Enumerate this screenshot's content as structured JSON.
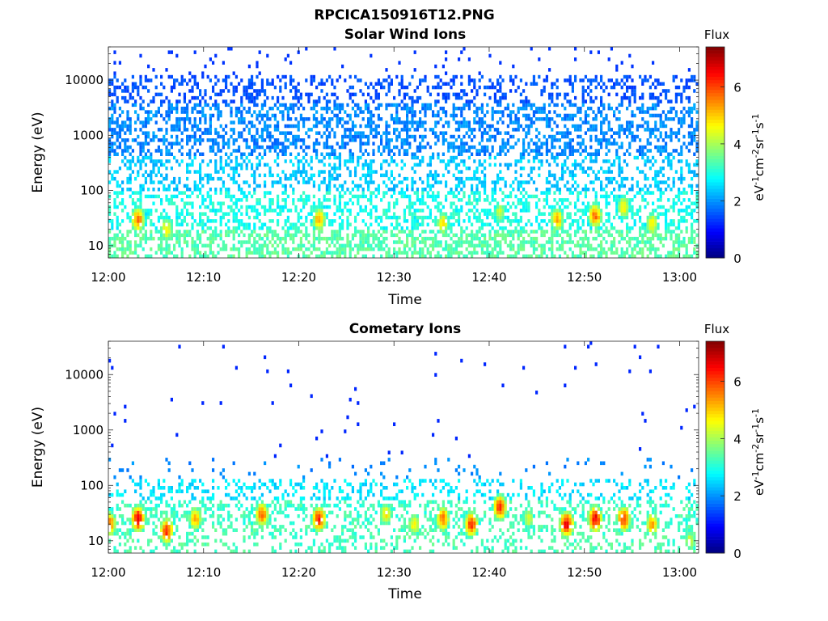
{
  "figure_title": "RPCICA150916T12.PNG",
  "chart_data": [
    {
      "type": "heatmap",
      "title": "Solar Wind Ions",
      "xlabel": "Time",
      "ylabel": "Energy (eV)",
      "y_scale": "log",
      "ylim": [
        6,
        40000
      ],
      "y_ticks": [
        10,
        100,
        1000,
        10000
      ],
      "y_tick_labels": [
        "10",
        "100",
        "1000",
        "10000"
      ],
      "xlim": [
        "12:00",
        "13:02"
      ],
      "x_ticks": [
        "12:00",
        "12:10",
        "12:20",
        "12:30",
        "12:40",
        "12:50",
        "13:00"
      ],
      "colorbar": {
        "title": "Flux",
        "label": "eV-1cm-2sr-1s-1",
        "label_parts": [
          {
            "t": "eV",
            "sup": false
          },
          {
            "t": "-1",
            "sup": true
          },
          {
            "t": "cm",
            "sup": false
          },
          {
            "t": "-2",
            "sup": true
          },
          {
            "t": "sr",
            "sup": false
          },
          {
            "t": "-1",
            "sup": true
          },
          {
            "t": "s",
            "sup": false
          },
          {
            "t": "-1",
            "sup": true
          }
        ],
        "range": [
          0,
          7.4
        ],
        "ticks": [
          0,
          2,
          4,
          6
        ],
        "colormap": "jet"
      },
      "bursts": [
        {
          "time": "12:03",
          "energy": 30,
          "flux": 6.0
        },
        {
          "time": "12:06",
          "energy": 20,
          "flux": 5.0
        },
        {
          "time": "12:22",
          "energy": 30,
          "flux": 5.5
        },
        {
          "time": "12:35",
          "energy": 25,
          "flux": 5.0
        },
        {
          "time": "12:41",
          "energy": 40,
          "flux": 4.5
        },
        {
          "time": "12:47",
          "energy": 30,
          "flux": 5.5
        },
        {
          "time": "12:51",
          "energy": 35,
          "flux": 6.0
        },
        {
          "time": "12:54",
          "energy": 50,
          "flux": 5.0
        },
        {
          "time": "12:57",
          "energy": 25,
          "flux": 5.0
        }
      ]
    },
    {
      "type": "heatmap",
      "title": "Cometary Ions",
      "xlabel": "Time",
      "ylabel": "Energy (eV)",
      "y_scale": "log",
      "ylim": [
        6,
        40000
      ],
      "y_ticks": [
        10,
        100,
        1000,
        10000
      ],
      "y_tick_labels": [
        "10",
        "100",
        "1000",
        "10000"
      ],
      "xlim": [
        "12:00",
        "13:02"
      ],
      "x_ticks": [
        "12:00",
        "12:10",
        "12:20",
        "12:30",
        "12:40",
        "12:50",
        "13:00"
      ],
      "colorbar": {
        "title": "Flux",
        "label": "eV-1cm-2sr-1s-1",
        "label_parts": [
          {
            "t": "eV",
            "sup": false
          },
          {
            "t": "-1",
            "sup": true
          },
          {
            "t": "cm",
            "sup": false
          },
          {
            "t": "-2",
            "sup": true
          },
          {
            "t": "sr",
            "sup": false
          },
          {
            "t": "-1",
            "sup": true
          },
          {
            "t": "s",
            "sup": false
          },
          {
            "t": "-1",
            "sup": true
          }
        ],
        "range": [
          0,
          7.4
        ],
        "ticks": [
          0,
          2,
          4,
          6
        ],
        "colormap": "jet"
      },
      "bursts": [
        {
          "time": "12:00",
          "energy": 20,
          "flux": 6.0
        },
        {
          "time": "12:03",
          "energy": 25,
          "flux": 7.0
        },
        {
          "time": "12:06",
          "energy": 15,
          "flux": 6.5
        },
        {
          "time": "12:09",
          "energy": 25,
          "flux": 5.5
        },
        {
          "time": "12:16",
          "energy": 30,
          "flux": 6.0
        },
        {
          "time": "12:22",
          "energy": 25,
          "flux": 6.5
        },
        {
          "time": "12:29",
          "energy": 30,
          "flux": 5.0
        },
        {
          "time": "12:32",
          "energy": 20,
          "flux": 5.0
        },
        {
          "time": "12:35",
          "energy": 25,
          "flux": 6.0
        },
        {
          "time": "12:38",
          "energy": 20,
          "flux": 6.5
        },
        {
          "time": "12:41",
          "energy": 40,
          "flux": 6.5
        },
        {
          "time": "12:44",
          "energy": 25,
          "flux": 4.5
        },
        {
          "time": "12:48",
          "energy": 20,
          "flux": 7.0
        },
        {
          "time": "12:51",
          "energy": 25,
          "flux": 7.0
        },
        {
          "time": "12:54",
          "energy": 25,
          "flux": 6.5
        },
        {
          "time": "12:57",
          "energy": 20,
          "flux": 5.5
        },
        {
          "time": "13:01",
          "energy": 10,
          "flux": 4.5
        }
      ]
    }
  ]
}
